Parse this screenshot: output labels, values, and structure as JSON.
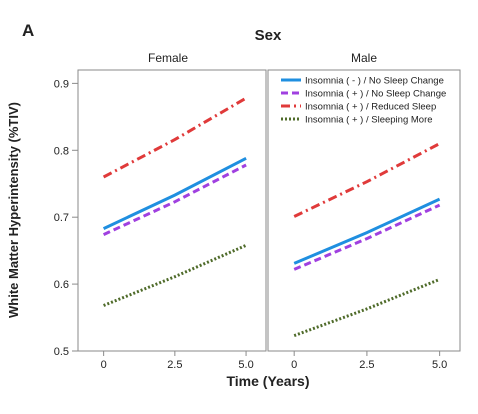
{
  "panel_letter": "A",
  "facet_title": "Sex",
  "chart_data": {
    "type": "line",
    "xlabel": "Time (Years)",
    "ylabel": "White Matter Hyperintensity (%TIV)",
    "xlim": [
      -0.9,
      5.7
    ],
    "ylim": [
      0.5,
      0.92
    ],
    "x_ticks": [
      0,
      2.5,
      5.0
    ],
    "x_tick_labels": [
      "0",
      "2.5",
      "5.0"
    ],
    "y_ticks": [
      0.5,
      0.6,
      0.7,
      0.8,
      0.9
    ],
    "y_tick_labels": [
      "0.5",
      "0.6",
      "0.7",
      "0.8",
      "0.9"
    ],
    "grid": false,
    "legend_position": "top-right",
    "legend": [
      {
        "label": "Insomnia ( - ) / No Sleep Change",
        "color": "#1f8fe0",
        "dash": "solid"
      },
      {
        "label": "Insomnia ( + ) / No Sleep Change",
        "color": "#a040e0",
        "dash": "dashed"
      },
      {
        "label": "Insomnia ( + ) / Reduced Sleep",
        "color": "#e03a3a",
        "dash": "dashdot"
      },
      {
        "label": "Insomnia ( + ) / Sleeping More",
        "color": "#4f6b2a",
        "dash": "dotted"
      }
    ],
    "panels": [
      {
        "title": "Female",
        "series": [
          {
            "key": 0,
            "x": [
              0,
              2.5,
              5.0
            ],
            "y": [
              0.683,
              0.733,
              0.788
            ]
          },
          {
            "key": 1,
            "x": [
              0,
              2.5,
              5.0
            ],
            "y": [
              0.674,
              0.723,
              0.778
            ]
          },
          {
            "key": 2,
            "x": [
              0,
              2.5,
              5.0
            ],
            "y": [
              0.76,
              0.816,
              0.878
            ]
          },
          {
            "key": 3,
            "x": [
              0,
              2.5,
              5.0
            ],
            "y": [
              0.568,
              0.611,
              0.658
            ]
          }
        ]
      },
      {
        "title": "Male",
        "series": [
          {
            "key": 0,
            "x": [
              0,
              2.5,
              5.0
            ],
            "y": [
              0.631,
              0.677,
              0.727
            ]
          },
          {
            "key": 1,
            "x": [
              0,
              2.5,
              5.0
            ],
            "y": [
              0.622,
              0.668,
              0.718
            ]
          },
          {
            "key": 2,
            "x": [
              0,
              2.5,
              5.0
            ],
            "y": [
              0.701,
              0.753,
              0.81
            ]
          },
          {
            "key": 3,
            "x": [
              0,
              2.5,
              5.0
            ],
            "y": [
              0.523,
              0.563,
              0.607
            ]
          }
        ]
      }
    ]
  }
}
